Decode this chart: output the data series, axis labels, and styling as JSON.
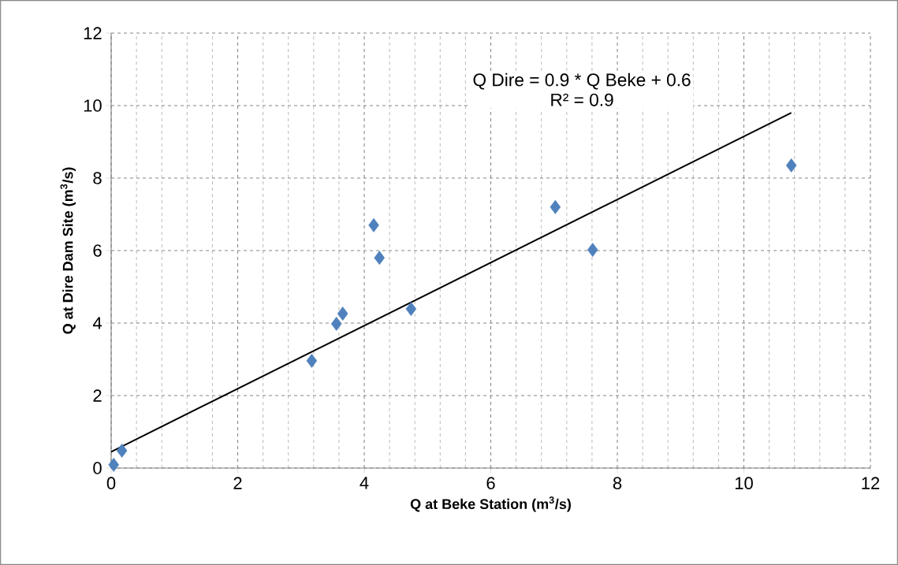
{
  "chart_data": {
    "type": "scatter",
    "xlabel": "**Q at Beke Station (m$^{3}$/s)**",
    "ylabel": "**Q at Dire Dam Site (m$^{3}$/s)**",
    "xlim": [
      0,
      12
    ],
    "ylim": [
      0,
      12
    ],
    "xticks": [
      0,
      2,
      4,
      6,
      8,
      10,
      12
    ],
    "yticks": [
      0,
      2,
      4,
      6,
      8,
      10,
      12
    ],
    "grid": true,
    "marker": "diamond",
    "annotations": [
      "Q Dire = 0.9  * Q Beke + 0.6",
      "R² = 0.9"
    ],
    "series": [
      {
        "color": "#4f81bd",
        "x": [
          0.04,
          0.17,
          3.17,
          3.56,
          3.66,
          4.15,
          4.24,
          4.74,
          7.02,
          7.61,
          10.75
        ],
        "values": [
          0.09,
          0.48,
          2.96,
          3.98,
          4.26,
          6.7,
          5.8,
          4.39,
          7.2,
          6.02,
          8.35
        ]
      },
      {
        "type": "line",
        "marker": "none",
        "color": "#000000",
        "x": [
          0,
          10.75
        ],
        "values": [
          0.45,
          9.8
        ]
      }
    ]
  }
}
